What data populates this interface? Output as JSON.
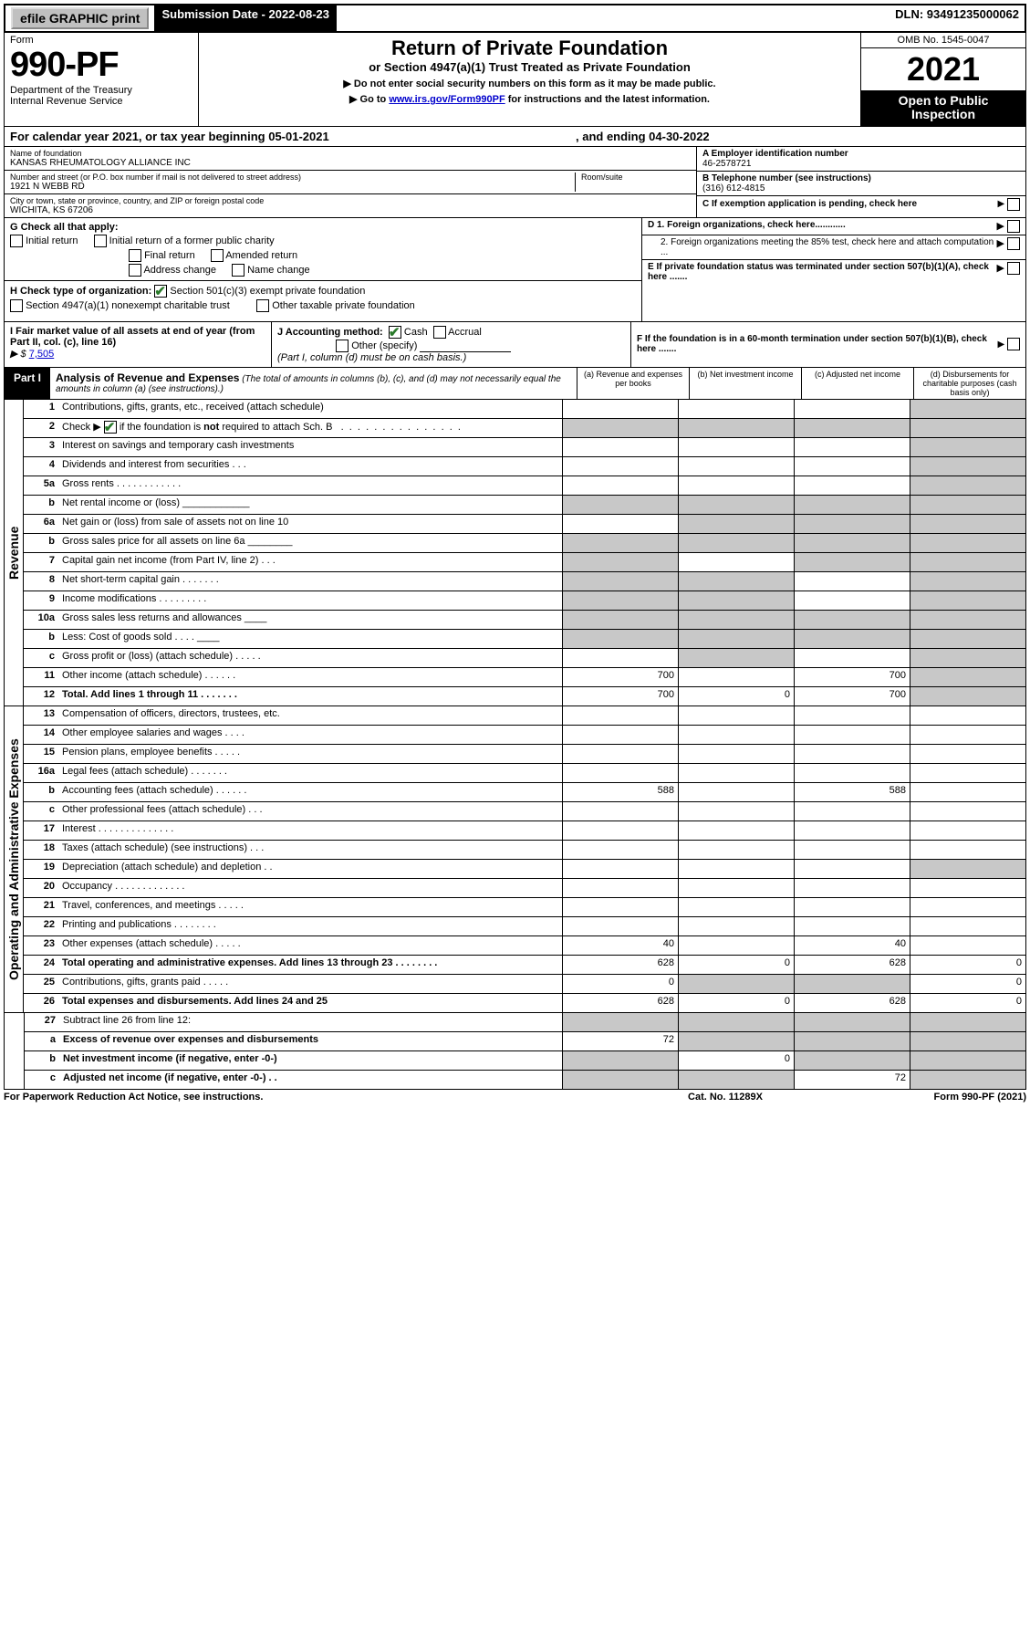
{
  "topbar": {
    "efile": "efile GRAPHIC print",
    "submission_label": "Submission Date - 2022-08-23",
    "dln": "DLN: 93491235000062"
  },
  "header": {
    "form_word": "Form",
    "form_num": "990-PF",
    "dept1": "Department of the Treasury",
    "dept2": "Internal Revenue Service",
    "title": "Return of Private Foundation",
    "subtitle": "or Section 4947(a)(1) Trust Treated as Private Foundation",
    "instr1": "▶ Do not enter social security numbers on this form as it may be made public.",
    "instr2_pre": "▶ Go to ",
    "instr2_link": "www.irs.gov/Form990PF",
    "instr2_post": " for instructions and the latest information.",
    "omb": "OMB No. 1545-0047",
    "year": "2021",
    "open1": "Open to Public",
    "open2": "Inspection"
  },
  "cal_year": {
    "left": "For calendar year 2021, or tax year beginning 05-01-2021",
    "right": ", and ending 04-30-2022"
  },
  "ident": {
    "name_label": "Name of foundation",
    "name": "KANSAS RHEUMATOLOGY ALLIANCE INC",
    "addr_label": "Number and street (or P.O. box number if mail is not delivered to street address)",
    "addr": "1921 N WEBB RD",
    "room_label": "Room/suite",
    "city_label": "City or town, state or province, country, and ZIP or foreign postal code",
    "city": "WICHITA, KS  67206",
    "a_label": "A Employer identification number",
    "a_val": "46-2578721",
    "b_label": "B Telephone number (see instructions)",
    "b_val": "(316) 612-4815",
    "c_label": "C If exemption application is pending, check here"
  },
  "g_row": {
    "label": "G Check all that apply:",
    "opts": [
      "Initial return",
      "Initial return of a former public charity",
      "Final return",
      "Amended return",
      "Address change",
      "Name change"
    ]
  },
  "d_rows": {
    "d1": "D 1. Foreign organizations, check here............",
    "d2": "2. Foreign organizations meeting the 85% test, check here and attach computation ...",
    "e": "E  If private foundation status was terminated under section 507(b)(1)(A), check here .......",
    "f": "F  If the foundation is in a 60-month termination under section 507(b)(1)(B), check here ......."
  },
  "h_row": {
    "label": "H Check type of organization:",
    "opt1": "Section 501(c)(3) exempt private foundation",
    "opt2": "Section 4947(a)(1) nonexempt charitable trust",
    "opt3": "Other taxable private foundation"
  },
  "i_row": {
    "label": "I Fair market value of all assets at end of year (from Part II, col. (c), line 16)",
    "val_prefix": "▶ $",
    "val": "7,505"
  },
  "j_row": {
    "label": "J Accounting method:",
    "cash": "Cash",
    "accrual": "Accrual",
    "other": "Other (specify)",
    "note": "(Part I, column (d) must be on cash basis.)"
  },
  "part1": {
    "tab": "Part I",
    "title": "Analysis of Revenue and Expenses",
    "desc": " (The total of amounts in columns (b), (c), and (d) may not necessarily equal the amounts in column (a) (see instructions).)",
    "cols": {
      "a": "(a) Revenue and expenses per books",
      "b": "(b) Net investment income",
      "c": "(c) Adjusted net income",
      "d": "(d) Disbursements for charitable purposes (cash basis only)"
    }
  },
  "side_labels": {
    "rev": "Revenue",
    "exp": "Operating and Administrative Expenses"
  },
  "lines": [
    {
      "n": "1",
      "t": "Contributions, gifts, grants, etc., received (attach schedule)",
      "a": "",
      "b": "",
      "c": "",
      "d": "",
      "sh": [
        "d"
      ]
    },
    {
      "n": "2",
      "t": "Check ▶ ☑ if the foundation is not required to attach Sch. B   .  .  .  .  .  .  .  .  .  .  .  .  .  .  .  .",
      "a": "",
      "b": "",
      "c": "",
      "d": "",
      "sh": [
        "a",
        "b",
        "c",
        "d"
      ],
      "bold": false,
      "check2": true
    },
    {
      "n": "3",
      "t": "Interest on savings and temporary cash investments",
      "a": "",
      "b": "",
      "c": "",
      "d": "",
      "sh": [
        "d"
      ]
    },
    {
      "n": "4",
      "t": "Dividends and interest from securities  .  .  .",
      "a": "",
      "b": "",
      "c": "",
      "d": "",
      "sh": [
        "d"
      ]
    },
    {
      "n": "5a",
      "t": "Gross rents  .  .  .  .  .  .  .  .  .  .  .  .",
      "a": "",
      "b": "",
      "c": "",
      "d": "",
      "sh": [
        "d"
      ]
    },
    {
      "n": "b",
      "t": "Net rental income or (loss)  ____________",
      "a": "",
      "b": "",
      "c": "",
      "d": "",
      "sh": [
        "a",
        "b",
        "c",
        "d"
      ]
    },
    {
      "n": "6a",
      "t": "Net gain or (loss) from sale of assets not on line 10",
      "a": "",
      "b": "",
      "c": "",
      "d": "",
      "sh": [
        "b",
        "c",
        "d"
      ]
    },
    {
      "n": "b",
      "t": "Gross sales price for all assets on line 6a ________",
      "a": "",
      "b": "",
      "c": "",
      "d": "",
      "sh": [
        "a",
        "b",
        "c",
        "d"
      ]
    },
    {
      "n": "7",
      "t": "Capital gain net income (from Part IV, line 2)  .  .  .",
      "a": "",
      "b": "",
      "c": "",
      "d": "",
      "sh": [
        "a",
        "c",
        "d"
      ]
    },
    {
      "n": "8",
      "t": "Net short-term capital gain  .  .  .  .  .  .  .",
      "a": "",
      "b": "",
      "c": "",
      "d": "",
      "sh": [
        "a",
        "b",
        "d"
      ]
    },
    {
      "n": "9",
      "t": "Income modifications  .  .  .  .  .  .  .  .  .",
      "a": "",
      "b": "",
      "c": "",
      "d": "",
      "sh": [
        "a",
        "b",
        "d"
      ]
    },
    {
      "n": "10a",
      "t": "Gross sales less returns and allowances  ____",
      "a": "",
      "b": "",
      "c": "",
      "d": "",
      "sh": [
        "a",
        "b",
        "c",
        "d"
      ]
    },
    {
      "n": "b",
      "t": "Less: Cost of goods sold  .  .  .  .  ____",
      "a": "",
      "b": "",
      "c": "",
      "d": "",
      "sh": [
        "a",
        "b",
        "c",
        "d"
      ]
    },
    {
      "n": "c",
      "t": "Gross profit or (loss) (attach schedule)  .  .  .  .  .",
      "a": "",
      "b": "",
      "c": "",
      "d": "",
      "sh": [
        "b",
        "d"
      ]
    },
    {
      "n": "11",
      "t": "Other income (attach schedule)  .  .  .  .  .  .",
      "a": "700",
      "b": "",
      "c": "700",
      "d": "",
      "sh": [
        "d"
      ]
    },
    {
      "n": "12",
      "t": "Total. Add lines 1 through 11  .  .  .  .  .  .  .",
      "a": "700",
      "b": "0",
      "c": "700",
      "d": "",
      "sh": [
        "d"
      ],
      "bold": true
    }
  ],
  "exp_lines": [
    {
      "n": "13",
      "t": "Compensation of officers, directors, trustees, etc.",
      "a": "",
      "b": "",
      "c": "",
      "d": ""
    },
    {
      "n": "14",
      "t": "Other employee salaries and wages  .  .  .  .",
      "a": "",
      "b": "",
      "c": "",
      "d": ""
    },
    {
      "n": "15",
      "t": "Pension plans, employee benefits  .  .  .  .  .",
      "a": "",
      "b": "",
      "c": "",
      "d": ""
    },
    {
      "n": "16a",
      "t": "Legal fees (attach schedule)  .  .  .  .  .  .  .",
      "a": "",
      "b": "",
      "c": "",
      "d": ""
    },
    {
      "n": "b",
      "t": "Accounting fees (attach schedule)  .  .  .  .  .  .",
      "a": "588",
      "b": "",
      "c": "588",
      "d": ""
    },
    {
      "n": "c",
      "t": "Other professional fees (attach schedule)  .  .  .",
      "a": "",
      "b": "",
      "c": "",
      "d": ""
    },
    {
      "n": "17",
      "t": "Interest  .  .  .  .  .  .  .  .  .  .  .  .  .  .",
      "a": "",
      "b": "",
      "c": "",
      "d": ""
    },
    {
      "n": "18",
      "t": "Taxes (attach schedule) (see instructions)  .  .  .",
      "a": "",
      "b": "",
      "c": "",
      "d": ""
    },
    {
      "n": "19",
      "t": "Depreciation (attach schedule) and depletion  .  .",
      "a": "",
      "b": "",
      "c": "",
      "d": "",
      "sh": [
        "d"
      ]
    },
    {
      "n": "20",
      "t": "Occupancy  .  .  .  .  .  .  .  .  .  .  .  .  .",
      "a": "",
      "b": "",
      "c": "",
      "d": ""
    },
    {
      "n": "21",
      "t": "Travel, conferences, and meetings  .  .  .  .  .",
      "a": "",
      "b": "",
      "c": "",
      "d": ""
    },
    {
      "n": "22",
      "t": "Printing and publications  .  .  .  .  .  .  .  .",
      "a": "",
      "b": "",
      "c": "",
      "d": ""
    },
    {
      "n": "23",
      "t": "Other expenses (attach schedule)  .  .  .  .  .",
      "a": "40",
      "b": "",
      "c": "40",
      "d": ""
    },
    {
      "n": "24",
      "t": "Total operating and administrative expenses. Add lines 13 through 23  .  .  .  .  .  .  .  .",
      "a": "628",
      "b": "0",
      "c": "628",
      "d": "0",
      "bold": true
    },
    {
      "n": "25",
      "t": "Contributions, gifts, grants paid  .  .  .  .  .",
      "a": "0",
      "b": "",
      "c": "",
      "d": "0",
      "sh": [
        "b",
        "c"
      ]
    },
    {
      "n": "26",
      "t": "Total expenses and disbursements. Add lines 24 and 25",
      "a": "628",
      "b": "0",
      "c": "628",
      "d": "0",
      "bold": true
    }
  ],
  "net_lines": [
    {
      "n": "27",
      "t": "Subtract line 26 from line 12:",
      "a": "",
      "b": "",
      "c": "",
      "d": "",
      "sh": [
        "a",
        "b",
        "c",
        "d"
      ]
    },
    {
      "n": "a",
      "t": "Excess of revenue over expenses and disbursements",
      "a": "72",
      "b": "",
      "c": "",
      "d": "",
      "sh": [
        "b",
        "c",
        "d"
      ],
      "bold": true
    },
    {
      "n": "b",
      "t": "Net investment income (if negative, enter -0-)",
      "a": "",
      "b": "0",
      "c": "",
      "d": "",
      "sh": [
        "a",
        "c",
        "d"
      ],
      "bold": true
    },
    {
      "n": "c",
      "t": "Adjusted net income (if negative, enter -0-)  .  .",
      "a": "",
      "b": "",
      "c": "72",
      "d": "",
      "sh": [
        "a",
        "b",
        "d"
      ],
      "bold": true
    }
  ],
  "footer": {
    "left": "For Paperwork Reduction Act Notice, see instructions.",
    "mid": "Cat. No. 11289X",
    "right": "Form 990-PF (2021)"
  }
}
